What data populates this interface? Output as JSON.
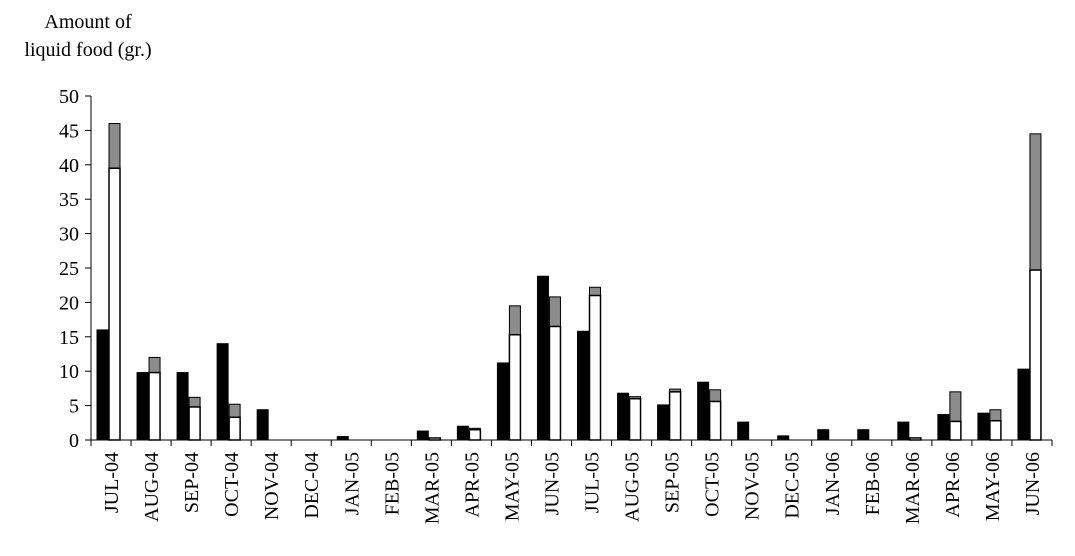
{
  "chart_data": {
    "type": "bar",
    "ylabel_line1": "Amount of",
    "ylabel_line2": "liquid food (gr.)",
    "ylim": [
      0,
      50
    ],
    "yticks": [
      0,
      5,
      10,
      15,
      20,
      25,
      30,
      35,
      40,
      45,
      50
    ],
    "categories": [
      "JUL-04",
      "AUG-04",
      "SEP-04",
      "OCT-04",
      "NOV-04",
      "DEC-04",
      "JAN-05",
      "FEB-05",
      "MAR-05",
      "APR-05",
      "MAY-05",
      "JUN-05",
      "JUL-05",
      "AUG-05",
      "SEP-05",
      "OCT-05",
      "NOV-05",
      "DEC-05",
      "JAN-06",
      "FEB-06",
      "MAR-06",
      "APR-06",
      "MAY-06",
      "JUN-06"
    ],
    "series_black": [
      16.0,
      9.8,
      9.8,
      14.0,
      4.4,
      0,
      0.5,
      0,
      1.3,
      2.0,
      11.2,
      23.8,
      15.8,
      6.8,
      5.1,
      8.4,
      2.6,
      0.6,
      1.5,
      1.5,
      2.6,
      3.7,
      3.9,
      10.3
    ],
    "series_white": [
      39.5,
      9.8,
      4.8,
      3.3,
      0,
      0,
      0,
      0,
      0.3,
      1.5,
      15.3,
      16.5,
      21.0,
      6.0,
      7.0,
      5.6,
      0,
      0,
      0,
      0,
      0.3,
      2.7,
      2.8,
      24.7
    ],
    "series_gray_top": [
      46.0,
      12.0,
      6.2,
      5.2,
      0,
      0,
      0,
      0,
      0,
      1.7,
      19.5,
      20.8,
      22.2,
      6.3,
      7.4,
      7.3,
      0,
      0,
      0,
      0,
      0,
      7.0,
      4.4,
      44.5
    ],
    "colors": {
      "black": "#000000",
      "white": "#ffffff",
      "gray": "#8c8c8c",
      "axis": "#000000"
    }
  }
}
